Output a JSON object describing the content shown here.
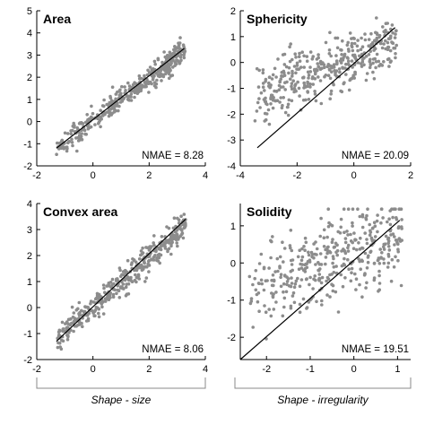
{
  "colors": {
    "points": "#8c8c8c",
    "fit_line": "#000000",
    "axes": "#000000",
    "background": "#ffffff"
  },
  "xlabels": [
    "Shape - size",
    "Shape - irregularity"
  ],
  "chart_data": [
    {
      "type": "scatter",
      "title": "Area",
      "annotation": "NMAE = 8.28",
      "xlim": [
        -2,
        4
      ],
      "ylim": [
        -2,
        5
      ],
      "xticks": [
        -2,
        0,
        2,
        4
      ],
      "yticks": [
        -2,
        -1,
        0,
        1,
        2,
        3,
        4,
        5
      ],
      "fit_line": {
        "x": [
          -1.3,
          3.25
        ],
        "y": [
          -1.2,
          3.3
        ]
      },
      "points": {
        "n": 400,
        "x_range": [
          -1.3,
          3.3
        ],
        "y_slope": 0.98,
        "y_intercept": 0.02,
        "noise_sd": 0.28
      },
      "grid": false
    },
    {
      "type": "scatter",
      "title": "Sphericity",
      "annotation": "NMAE = 20.09",
      "xlim": [
        -4,
        2
      ],
      "ylim": [
        -4,
        2
      ],
      "xticks": [
        -4,
        -2,
        0,
        2
      ],
      "yticks": [
        -4,
        -3,
        -2,
        -1,
        0,
        1,
        2
      ],
      "fit_line": {
        "x": [
          -3.4,
          1.45
        ],
        "y": [
          -3.3,
          1.35
        ]
      },
      "points": {
        "n": 400,
        "x_range": [
          -3.5,
          1.5
        ],
        "y_slope": 0.45,
        "y_intercept": 0.2,
        "noise_sd": 0.55
      },
      "grid": false
    },
    {
      "type": "scatter",
      "title": "Convex area",
      "annotation": "NMAE = 8.06",
      "xlim": [
        -2,
        4
      ],
      "ylim": [
        -2,
        4
      ],
      "xticks": [
        -2,
        0,
        2,
        4
      ],
      "yticks": [
        -2,
        -1,
        0,
        1,
        2,
        3,
        4
      ],
      "fit_line": {
        "x": [
          -1.3,
          3.3
        ],
        "y": [
          -1.3,
          3.4
        ]
      },
      "points": {
        "n": 400,
        "x_range": [
          -1.3,
          3.3
        ],
        "y_slope": 0.95,
        "y_intercept": 0.0,
        "noise_sd": 0.25
      },
      "grid": false
    },
    {
      "type": "scatter",
      "title": "Solidity",
      "annotation": "NMAE = 19.51",
      "xlim": [
        -2.6,
        1.3
      ],
      "ylim": [
        -2.6,
        1.6
      ],
      "xticks": [
        -2,
        -1,
        0,
        1
      ],
      "yticks": [
        -2,
        -1,
        0,
        1
      ],
      "fit_line": {
        "x": [
          -2.6,
          1.05
        ],
        "y": [
          -2.6,
          1.15
        ]
      },
      "points": {
        "n": 400,
        "x_range": [
          -2.4,
          1.1
        ],
        "y_slope": 0.35,
        "y_intercept": 0.25,
        "noise_sd": 0.55
      },
      "grid": false
    }
  ]
}
